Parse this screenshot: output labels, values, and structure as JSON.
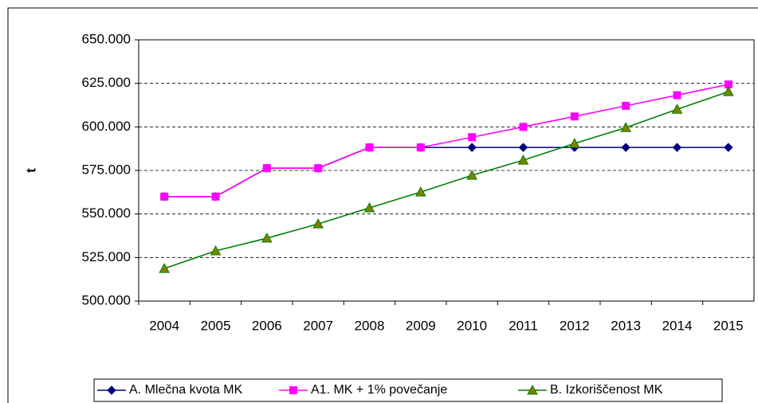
{
  "chart_data": {
    "type": "line",
    "y_label": "t",
    "categories": [
      "2004",
      "2005",
      "2006",
      "2007",
      "2008",
      "2009",
      "2010",
      "2011",
      "2012",
      "2013",
      "2014",
      "2015"
    ],
    "series": [
      {
        "name": "A. Mlečna kvota MK",
        "color": "#000080",
        "marker": "diamond",
        "values": [
          560000,
          560000,
          576300,
          576300,
          588200,
          588200,
          588200,
          588200,
          588200,
          588200,
          588200,
          588200
        ]
      },
      {
        "name": "A1.  MK + 1% povečanje",
        "color": "#ff00ff",
        "marker": "square",
        "values": [
          560000,
          560000,
          576300,
          576300,
          588200,
          588200,
          594100,
          600000,
          606000,
          612100,
          618200,
          624400
        ]
      },
      {
        "name": "B. Izkoriščenost MK",
        "color": "#008000",
        "marker": "triangle",
        "values": [
          518700,
          528800,
          536100,
          544300,
          553500,
          562600,
          572200,
          580900,
          590500,
          599600,
          610100,
          620200
        ]
      }
    ],
    "ylim": [
      500000,
      650000
    ],
    "yticks": [
      {
        "value": 500000,
        "label": "500.000"
      },
      {
        "value": 525000,
        "label": "525.000"
      },
      {
        "value": 550000,
        "label": "550.000"
      },
      {
        "value": 575000,
        "label": "575.000"
      },
      {
        "value": 600000,
        "label": "600.000"
      },
      {
        "value": 625000,
        "label": "625.000"
      },
      {
        "value": 650000,
        "label": "650.000"
      }
    ],
    "grid": true,
    "legend": "bottom"
  }
}
